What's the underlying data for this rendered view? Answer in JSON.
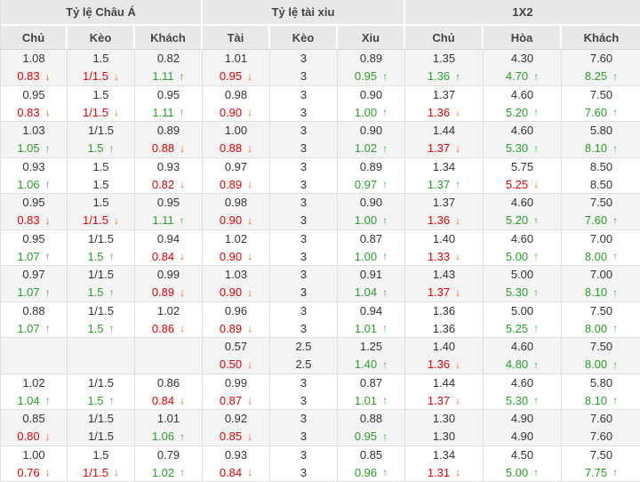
{
  "table": {
    "groups": [
      {
        "title": "Tỷ lệ Châu Á",
        "columns": [
          "Chủ",
          "Kèo",
          "Khách"
        ]
      },
      {
        "title": "Tỷ lệ tài xiu",
        "columns": [
          "Tài",
          "Kèo",
          "Xiu"
        ]
      },
      {
        "title": "1X2",
        "columns": [
          "Chủ",
          "Hòa",
          "Khách"
        ]
      }
    ],
    "rows": [
      [
        {
          "v1": "1.08",
          "v2": "0.83",
          "t": "d"
        },
        {
          "v1": "1.5",
          "v2": "1/1.5",
          "t": "d"
        },
        {
          "v1": "0.82",
          "v2": "1.11",
          "t": "u"
        },
        {
          "v1": "1.01",
          "v2": "0.95",
          "t": "d"
        },
        {
          "v1": "3",
          "v2": "3",
          "t": "n"
        },
        {
          "v1": "0.89",
          "v2": "0.95",
          "t": "u"
        },
        {
          "v1": "1.35",
          "v2": "1.36",
          "t": "u"
        },
        {
          "v1": "4.30",
          "v2": "4.70",
          "t": "u"
        },
        {
          "v1": "7.60",
          "v2": "8.25",
          "t": "u"
        }
      ],
      [
        {
          "v1": "0.95",
          "v2": "0.83",
          "t": "d"
        },
        {
          "v1": "1.5",
          "v2": "1/1.5",
          "t": "d"
        },
        {
          "v1": "0.95",
          "v2": "1.11",
          "t": "u"
        },
        {
          "v1": "0.98",
          "v2": "0.90",
          "t": "d"
        },
        {
          "v1": "3",
          "v2": "3",
          "t": "n"
        },
        {
          "v1": "0.90",
          "v2": "1.00",
          "t": "u"
        },
        {
          "v1": "1.37",
          "v2": "1.36",
          "t": "d"
        },
        {
          "v1": "4.60",
          "v2": "5.20",
          "t": "u"
        },
        {
          "v1": "7.50",
          "v2": "7.60",
          "t": "u"
        }
      ],
      [
        {
          "v1": "1.03",
          "v2": "1.05",
          "t": "u"
        },
        {
          "v1": "1/1.5",
          "v2": "1.5",
          "t": "u"
        },
        {
          "v1": "0.89",
          "v2": "0.88",
          "t": "d"
        },
        {
          "v1": "1.00",
          "v2": "0.88",
          "t": "d"
        },
        {
          "v1": "3",
          "v2": "3",
          "t": "n"
        },
        {
          "v1": "0.90",
          "v2": "1.02",
          "t": "u"
        },
        {
          "v1": "1.44",
          "v2": "1.37",
          "t": "d"
        },
        {
          "v1": "4.60",
          "v2": "5.30",
          "t": "u"
        },
        {
          "v1": "5.80",
          "v2": "8.10",
          "t": "u"
        }
      ],
      [
        {
          "v1": "0.93",
          "v2": "1.06",
          "t": "u"
        },
        {
          "v1": "1.5",
          "v2": "1.5",
          "t": "n"
        },
        {
          "v1": "0.93",
          "v2": "0.82",
          "t": "d"
        },
        {
          "v1": "0.97",
          "v2": "0.89",
          "t": "d"
        },
        {
          "v1": "3",
          "v2": "3",
          "t": "n"
        },
        {
          "v1": "0.89",
          "v2": "0.97",
          "t": "u"
        },
        {
          "v1": "1.34",
          "v2": "1.37",
          "t": "u"
        },
        {
          "v1": "5.75",
          "v2": "5.25",
          "t": "d"
        },
        {
          "v1": "8.50",
          "v2": "8.50",
          "t": "n"
        }
      ],
      [
        {
          "v1": "0.95",
          "v2": "0.83",
          "t": "d"
        },
        {
          "v1": "1.5",
          "v2": "1/1.5",
          "t": "d"
        },
        {
          "v1": "0.95",
          "v2": "1.11",
          "t": "u"
        },
        {
          "v1": "0.98",
          "v2": "0.90",
          "t": "d"
        },
        {
          "v1": "3",
          "v2": "3",
          "t": "n"
        },
        {
          "v1": "0.90",
          "v2": "1.00",
          "t": "u"
        },
        {
          "v1": "1.37",
          "v2": "1.36",
          "t": "d"
        },
        {
          "v1": "4.60",
          "v2": "5.20",
          "t": "u"
        },
        {
          "v1": "7.50",
          "v2": "7.60",
          "t": "u"
        }
      ],
      [
        {
          "v1": "0.95",
          "v2": "1.07",
          "t": "u"
        },
        {
          "v1": "1/1.5",
          "v2": "1.5",
          "t": "u"
        },
        {
          "v1": "0.94",
          "v2": "0.84",
          "t": "d"
        },
        {
          "v1": "1.02",
          "v2": "0.90",
          "t": "d"
        },
        {
          "v1": "3",
          "v2": "3",
          "t": "n"
        },
        {
          "v1": "0.87",
          "v2": "1.00",
          "t": "u"
        },
        {
          "v1": "1.40",
          "v2": "1.33",
          "t": "d"
        },
        {
          "v1": "4.60",
          "v2": "5.00",
          "t": "u"
        },
        {
          "v1": "7.00",
          "v2": "8.00",
          "t": "u"
        }
      ],
      [
        {
          "v1": "0.97",
          "v2": "1.07",
          "t": "u"
        },
        {
          "v1": "1/1.5",
          "v2": "1.5",
          "t": "u"
        },
        {
          "v1": "0.99",
          "v2": "0.89",
          "t": "d"
        },
        {
          "v1": "1.03",
          "v2": "0.90",
          "t": "d"
        },
        {
          "v1": "3",
          "v2": "3",
          "t": "n"
        },
        {
          "v1": "0.91",
          "v2": "1.04",
          "t": "u"
        },
        {
          "v1": "1.43",
          "v2": "1.37",
          "t": "d"
        },
        {
          "v1": "5.00",
          "v2": "5.30",
          "t": "u"
        },
        {
          "v1": "7.00",
          "v2": "8.10",
          "t": "u"
        }
      ],
      [
        {
          "v1": "0.88",
          "v2": "1.07",
          "t": "u"
        },
        {
          "v1": "1/1.5",
          "v2": "1.5",
          "t": "u"
        },
        {
          "v1": "1.02",
          "v2": "0.86",
          "t": "d"
        },
        {
          "v1": "0.96",
          "v2": "0.89",
          "t": "d"
        },
        {
          "v1": "3",
          "v2": "3",
          "t": "n"
        },
        {
          "v1": "0.94",
          "v2": "1.01",
          "t": "u"
        },
        {
          "v1": "1.36",
          "v2": "1.36",
          "t": "n"
        },
        {
          "v1": "5.00",
          "v2": "5.25",
          "t": "u"
        },
        {
          "v1": "7.50",
          "v2": "8.00",
          "t": "u"
        }
      ],
      [
        {
          "v1": "",
          "v2": "",
          "t": "n"
        },
        {
          "v1": "",
          "v2": "",
          "t": "n"
        },
        {
          "v1": "",
          "v2": "",
          "t": "n"
        },
        {
          "v1": "0.57",
          "v2": "0.50",
          "t": "d"
        },
        {
          "v1": "2.5",
          "v2": "2.5",
          "t": "n"
        },
        {
          "v1": "1.25",
          "v2": "1.40",
          "t": "u"
        },
        {
          "v1": "1.40",
          "v2": "1.36",
          "t": "d"
        },
        {
          "v1": "4.60",
          "v2": "4.80",
          "t": "u"
        },
        {
          "v1": "7.50",
          "v2": "8.00",
          "t": "u"
        }
      ],
      [
        {
          "v1": "1.02",
          "v2": "1.04",
          "t": "u"
        },
        {
          "v1": "1/1.5",
          "v2": "1.5",
          "t": "u"
        },
        {
          "v1": "0.86",
          "v2": "0.84",
          "t": "d"
        },
        {
          "v1": "0.99",
          "v2": "0.87",
          "t": "d"
        },
        {
          "v1": "3",
          "v2": "3",
          "t": "n"
        },
        {
          "v1": "0.87",
          "v2": "1.01",
          "t": "u"
        },
        {
          "v1": "1.44",
          "v2": "1.37",
          "t": "d"
        },
        {
          "v1": "4.60",
          "v2": "5.30",
          "t": "u"
        },
        {
          "v1": "5.80",
          "v2": "8.10",
          "t": "u"
        }
      ],
      [
        {
          "v1": "0.85",
          "v2": "0.80",
          "t": "d"
        },
        {
          "v1": "1/1.5",
          "v2": "1/1.5",
          "t": "n"
        },
        {
          "v1": "1.01",
          "v2": "1.06",
          "t": "u"
        },
        {
          "v1": "0.92",
          "v2": "0.85",
          "t": "d"
        },
        {
          "v1": "3",
          "v2": "3",
          "t": "n"
        },
        {
          "v1": "0.88",
          "v2": "0.95",
          "t": "u"
        },
        {
          "v1": "1.30",
          "v2": "1.30",
          "t": "n"
        },
        {
          "v1": "4.90",
          "v2": "4.90",
          "t": "n"
        },
        {
          "v1": "7.60",
          "v2": "7.60",
          "t": "n"
        }
      ],
      [
        {
          "v1": "1.00",
          "v2": "0.76",
          "t": "d"
        },
        {
          "v1": "1.5",
          "v2": "1/1.5",
          "t": "d"
        },
        {
          "v1": "0.79",
          "v2": "1.02",
          "t": "u"
        },
        {
          "v1": "0.93",
          "v2": "0.84",
          "t": "d"
        },
        {
          "v1": "3",
          "v2": "3",
          "t": "n"
        },
        {
          "v1": "0.85",
          "v2": "0.96",
          "t": "u"
        },
        {
          "v1": "1.34",
          "v2": "1.31",
          "t": "d"
        },
        {
          "v1": "4.50",
          "v2": "5.00",
          "t": "u"
        },
        {
          "v1": "7.50",
          "v2": "7.75",
          "t": "u"
        }
      ]
    ]
  },
  "icons": {
    "up": "↑",
    "down": "↓"
  },
  "colors": {
    "header_bg": "#e9e9e9",
    "row_alt_bg": "#f4f4f4",
    "text": "#333333",
    "down_text": "#e60000",
    "down_arrow": "#ff5a00",
    "up_text": "#28a028",
    "up_arrow": "#3fae3f",
    "border": "#e0e0e0"
  }
}
